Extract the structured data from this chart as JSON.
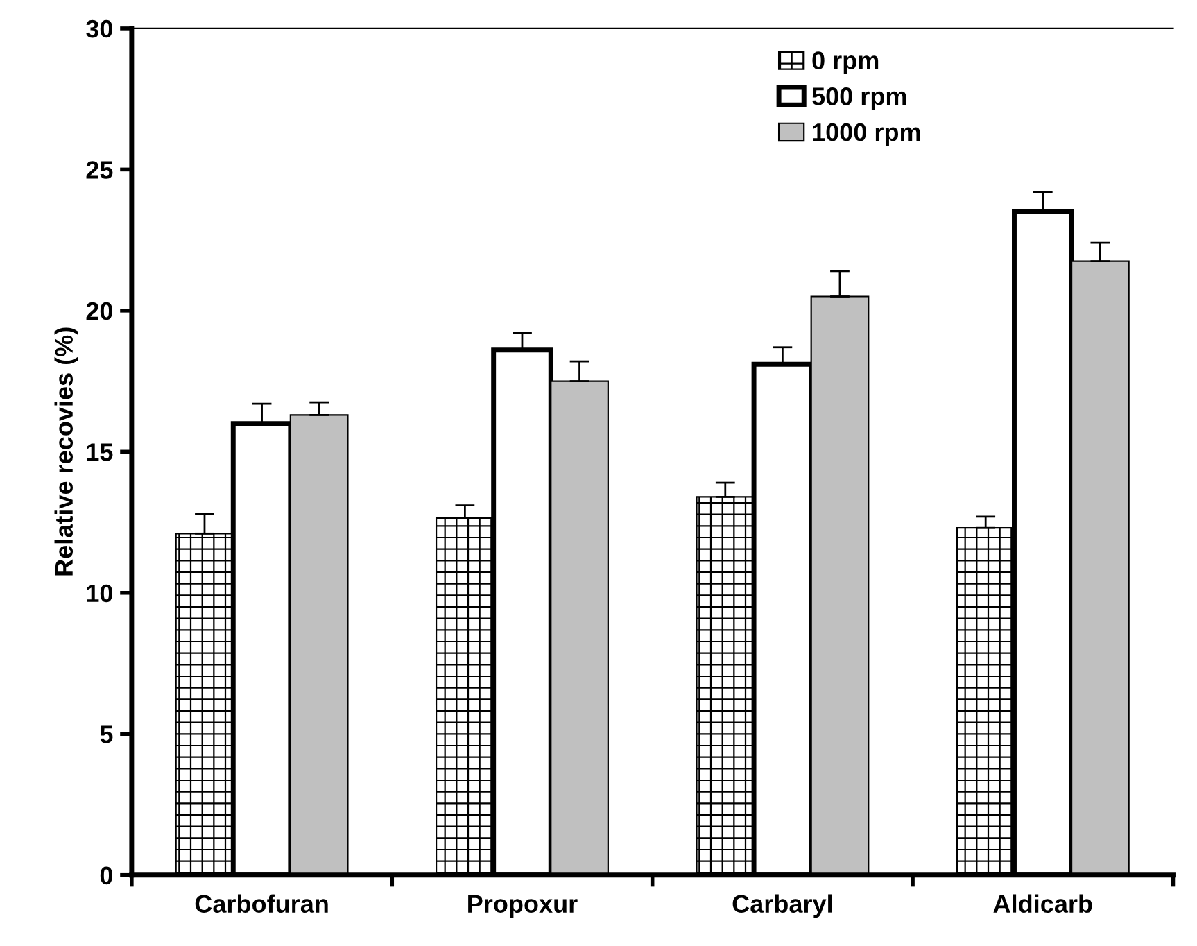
{
  "chart_data": {
    "type": "bar",
    "ylabel": "Relative recovies (%)",
    "categories": [
      "Carbofuran",
      "Propoxur",
      "Carbaryl",
      "Aldicarb"
    ],
    "series": [
      {
        "name": "0 rpm",
        "color": "#000000",
        "values": [
          12.1,
          12.65,
          13.4,
          12.3
        ],
        "errors": [
          [
            12.1,
            12.8
          ],
          [
            12.65,
            13.1
          ],
          [
            13.4,
            13.9
          ],
          [
            12.3,
            12.7
          ]
        ]
      },
      {
        "name": "500 rpm",
        "color": "#ffffff",
        "values": [
          16.0,
          18.6,
          18.1,
          23.5
        ],
        "errors": [
          [
            16.0,
            16.7
          ],
          [
            18.6,
            19.2
          ],
          [
            18.1,
            18.7
          ],
          [
            23.5,
            24.2
          ]
        ]
      },
      {
        "name": "1000 rpm",
        "color": "#c0c0c0",
        "values": [
          16.3,
          17.5,
          20.5,
          21.75
        ],
        "errors": [
          [
            16.3,
            16.75
          ],
          [
            17.5,
            18.2
          ],
          [
            20.5,
            21.4
          ],
          [
            21.75,
            22.4
          ]
        ]
      }
    ],
    "ylim": [
      0,
      30
    ],
    "yticks": [
      0,
      5,
      10,
      15,
      20,
      25,
      30
    ],
    "grid": false,
    "legend": "top right"
  }
}
